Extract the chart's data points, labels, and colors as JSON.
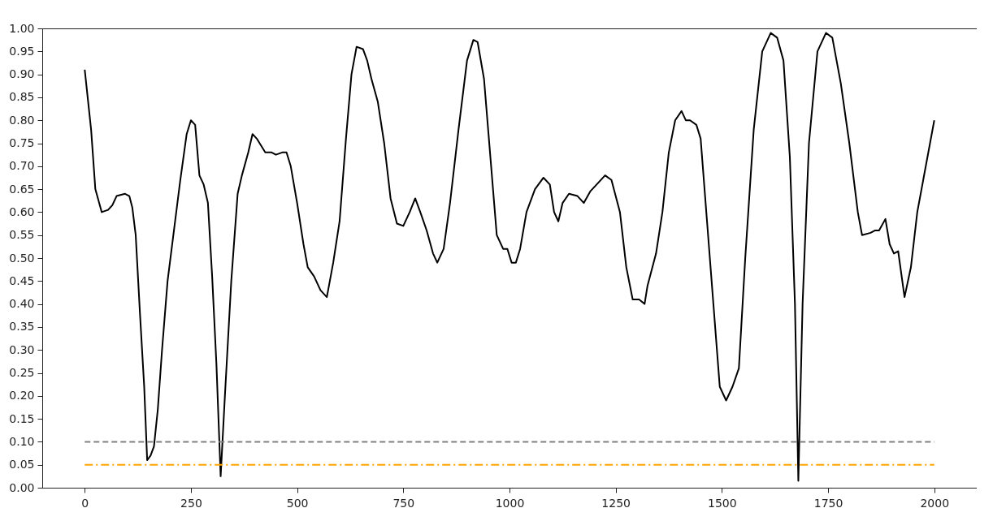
{
  "chart_data": {
    "type": "line",
    "xlim": [
      -100,
      2100
    ],
    "xticks": [
      0,
      250,
      500,
      750,
      1000,
      1250,
      1500,
      1750,
      2000
    ],
    "ylim": [
      0,
      1
    ],
    "yticks": [
      {
        "value": 0,
        "label": "0.00"
      },
      {
        "value": 0.05,
        "label": "0.05"
      },
      {
        "value": 0.1,
        "label": "0.10"
      },
      {
        "value": 0.15,
        "label": "0.15"
      },
      {
        "value": 0.2,
        "label": "0.20"
      },
      {
        "value": 0.25,
        "label": "0.25"
      },
      {
        "value": 0.3,
        "label": "0.30"
      },
      {
        "value": 0.35,
        "label": "0.35"
      },
      {
        "value": 0.4,
        "label": "0.40"
      },
      {
        "value": 0.45,
        "label": "0.45"
      },
      {
        "value": 0.5,
        "label": "0.50"
      },
      {
        "value": 0.55,
        "label": "0.55"
      },
      {
        "value": 0.6,
        "label": "0.60"
      },
      {
        "value": 0.65,
        "label": "0.65"
      },
      {
        "value": 0.7,
        "label": "0.70"
      },
      {
        "value": 0.75,
        "label": "0.75"
      },
      {
        "value": 0.8,
        "label": "0.80"
      },
      {
        "value": 0.85,
        "label": "0.85"
      },
      {
        "value": 0.9,
        "label": "0.90"
      },
      {
        "value": 0.95,
        "label": "0.95"
      },
      {
        "value": 1,
        "label": "1.00"
      }
    ],
    "grid": false,
    "series": [
      {
        "color": "#000000",
        "line_style": "solid",
        "x": [
          0,
          15,
          25,
          40,
          55,
          65,
          75,
          95,
          105,
          112,
          120,
          130,
          140,
          147,
          155,
          163,
          172,
          182,
          195,
          210,
          225,
          240,
          250,
          260,
          270,
          280,
          290,
          300,
          310,
          320,
          330,
          345,
          360,
          370,
          385,
          395,
          405,
          415,
          425,
          440,
          450,
          465,
          475,
          485,
          500,
          515,
          525,
          540,
          555,
          570,
          585,
          600,
          615,
          628,
          640,
          655,
          665,
          675,
          690,
          705,
          720,
          735,
          750,
          765,
          778,
          790,
          805,
          820,
          830,
          845,
          860,
          880,
          900,
          915,
          925,
          940,
          955,
          970,
          985,
          995,
          1005,
          1015,
          1025,
          1040,
          1060,
          1080,
          1095,
          1105,
          1115,
          1125,
          1140,
          1160,
          1175,
          1190,
          1210,
          1225,
          1240,
          1260,
          1275,
          1290,
          1305,
          1318,
          1325,
          1345,
          1360,
          1375,
          1390,
          1405,
          1415,
          1425,
          1440,
          1450,
          1465,
          1480,
          1495,
          1510,
          1525,
          1540,
          1555,
          1575,
          1595,
          1615,
          1630,
          1645,
          1660,
          1672,
          1680,
          1690,
          1705,
          1725,
          1745,
          1760,
          1780,
          1800,
          1820,
          1830,
          1850,
          1860,
          1870,
          1885,
          1895,
          1905,
          1915,
          1930,
          1945,
          1960,
          1980,
          2000
        ],
        "values": [
          0.91,
          0.78,
          0.65,
          0.6,
          0.605,
          0.615,
          0.635,
          0.64,
          0.635,
          0.61,
          0.55,
          0.38,
          0.22,
          0.06,
          0.07,
          0.09,
          0.17,
          0.3,
          0.45,
          0.56,
          0.67,
          0.77,
          0.8,
          0.79,
          0.68,
          0.66,
          0.62,
          0.46,
          0.27,
          0.025,
          0.2,
          0.45,
          0.64,
          0.68,
          0.73,
          0.77,
          0.76,
          0.745,
          0.73,
          0.73,
          0.725,
          0.73,
          0.73,
          0.7,
          0.62,
          0.53,
          0.48,
          0.46,
          0.43,
          0.415,
          0.49,
          0.58,
          0.76,
          0.9,
          0.96,
          0.955,
          0.93,
          0.89,
          0.84,
          0.75,
          0.63,
          0.575,
          0.57,
          0.6,
          0.63,
          0.6,
          0.56,
          0.51,
          0.49,
          0.52,
          0.62,
          0.78,
          0.93,
          0.975,
          0.97,
          0.89,
          0.72,
          0.55,
          0.52,
          0.52,
          0.49,
          0.49,
          0.52,
          0.6,
          0.65,
          0.675,
          0.66,
          0.6,
          0.58,
          0.62,
          0.64,
          0.635,
          0.62,
          0.645,
          0.665,
          0.68,
          0.67,
          0.6,
          0.48,
          0.41,
          0.41,
          0.4,
          0.44,
          0.51,
          0.6,
          0.73,
          0.8,
          0.82,
          0.8,
          0.8,
          0.79,
          0.76,
          0.58,
          0.4,
          0.22,
          0.19,
          0.22,
          0.26,
          0.5,
          0.78,
          0.95,
          0.99,
          0.98,
          0.93,
          0.72,
          0.4,
          0.015,
          0.4,
          0.75,
          0.95,
          0.99,
          0.98,
          0.88,
          0.75,
          0.6,
          0.55,
          0.555,
          0.56,
          0.56,
          0.585,
          0.53,
          0.51,
          0.515,
          0.415,
          0.48,
          0.6,
          0.7,
          0.8
        ]
      },
      {
        "color": "#808080",
        "line_style": "dashed",
        "x": [
          0,
          2000
        ],
        "values": [
          0.1,
          0.1
        ]
      },
      {
        "color": "#ffa500",
        "line_style": "dashdot",
        "x": [
          0,
          2000
        ],
        "values": [
          0.05,
          0.05
        ]
      }
    ]
  }
}
